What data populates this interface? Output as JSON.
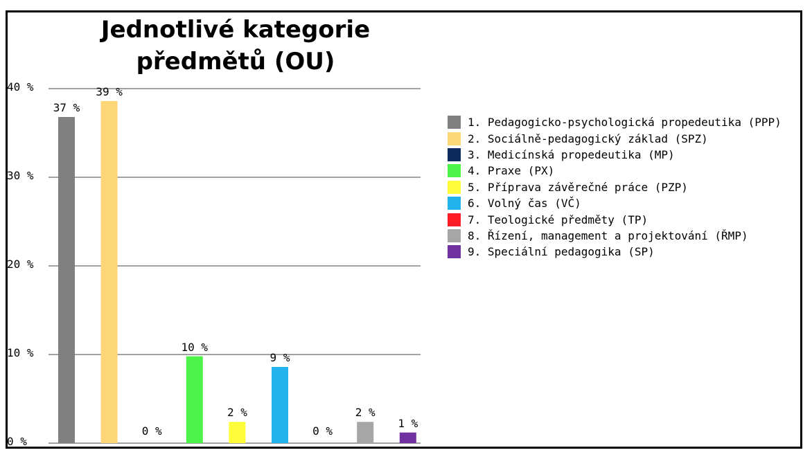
{
  "chart_data": {
    "type": "bar",
    "title": "Jednotlivé kategorie\npředmětů (OU)",
    "ylim": [
      0,
      40
    ],
    "yticks": [
      0,
      10,
      20,
      30,
      40
    ],
    "ytick_labels": [
      "0 %",
      "10 %",
      "20 %",
      "30 %",
      "40 %"
    ],
    "grid": true,
    "legend_position": "right",
    "categories": [
      "1. Pedagogicko-psychologická propedeutika (PPP)",
      "2. Sociálně-pedagogický základ (SPZ)",
      "3. Medicínská propedeutika (MP)",
      "4. Praxe (PX)",
      "5. Příprava závěrečné práce (PZP)",
      "6. Volný čas (VČ)",
      "7. Teologické předměty (TP)",
      "8. Řízení, management a projektování (ŘMP)",
      "9. Speciální pedagogika (SP)"
    ],
    "values": [
      36.8,
      38.6,
      0,
      9.8,
      2.4,
      8.6,
      0,
      2.4,
      1.2
    ],
    "value_labels": [
      "37 %",
      "39 %",
      "0 %",
      "10 %",
      "2 %",
      "9 %",
      "0 %",
      "2 %",
      "1 %"
    ],
    "colors": [
      "#808080",
      "#fdd675",
      "#0c2a5c",
      "#4cf44a",
      "#fdfd3a",
      "#22b2ec",
      "#fd1b26",
      "#a6a6a6",
      "#7032a0"
    ],
    "gridline_color": "#808080"
  }
}
